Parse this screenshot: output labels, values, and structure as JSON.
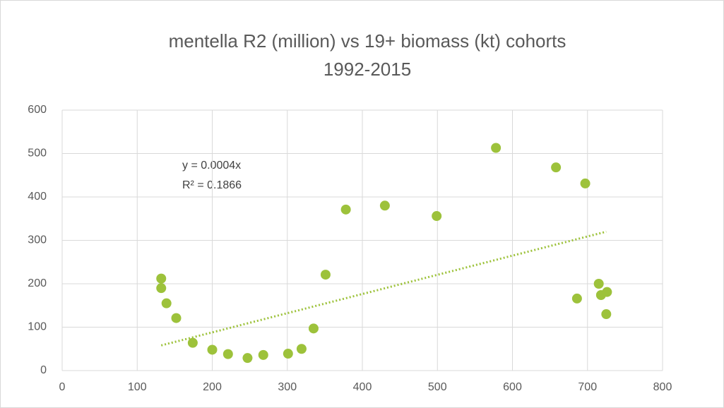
{
  "chart_data": {
    "type": "scatter",
    "title": [
      "mentella R2 (million)  vs 19+ biomass (kt)  cohorts",
      "1992-2015"
    ],
    "annotations": [
      "y = 0.0004x",
      "R² = 0.1866"
    ],
    "series": [
      {
        "color": "#9dc23b",
        "x": [
          132,
          132,
          139,
          152,
          174,
          200,
          221,
          247,
          268,
          301,
          319,
          335,
          351,
          378,
          430,
          499,
          578,
          658,
          686,
          697,
          715,
          718,
          726,
          725
        ],
        "values": [
          212,
          190,
          155,
          121,
          64,
          48,
          38,
          29,
          36,
          39,
          50,
          97,
          221,
          371,
          380,
          356,
          513,
          468,
          166,
          431,
          200,
          174,
          181,
          130
        ]
      }
    ],
    "trendline": {
      "color": "#9dc23b",
      "x": [
        132,
        725
      ],
      "values": [
        58,
        320
      ]
    },
    "xlim": [
      0,
      800
    ],
    "xticks": [
      0,
      100,
      200,
      300,
      400,
      500,
      600,
      700,
      800
    ],
    "ylim": [
      0,
      600
    ],
    "yticks": [
      0,
      100,
      200,
      300,
      400,
      500,
      600
    ],
    "grid": true
  }
}
